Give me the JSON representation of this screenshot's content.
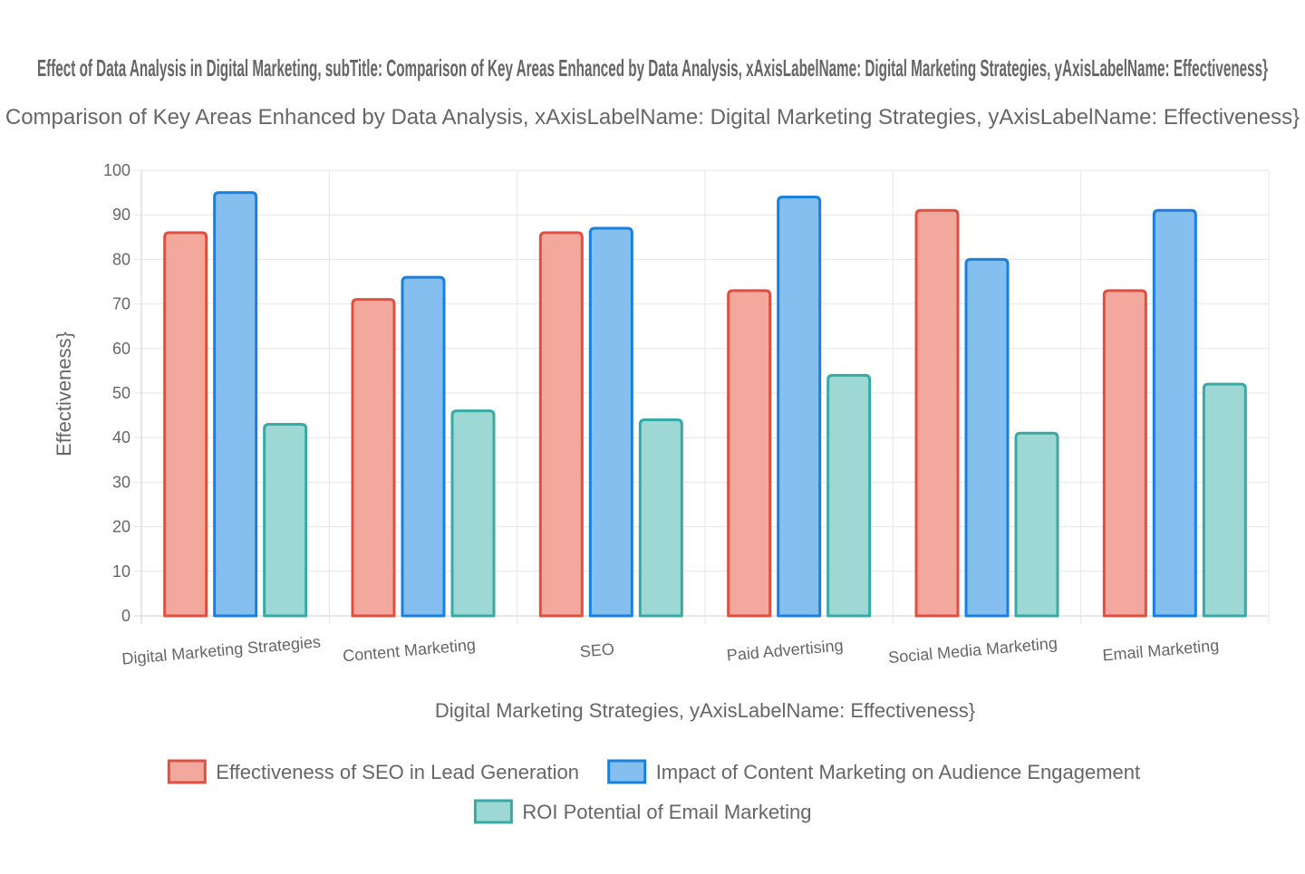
{
  "chart_data": {
    "type": "bar",
    "title": "Effect of Data Analysis in Digital Marketing, subTitle: Comparison of Key Areas Enhanced by Data Analysis, xAxisLabelName: Digital Marketing Strategies, yAxisLabelName: Effectiveness}",
    "subtitle": "Comparison of Key Areas Enhanced by Data Analysis, xAxisLabelName: Digital Marketing Strategies, yAxisLabelName: Effectiveness}",
    "xlabel": "Digital Marketing Strategies, yAxisLabelName: Effectiveness}",
    "ylabel": "Effectiveness}",
    "ylim": [
      0,
      100
    ],
    "yticks": [
      0,
      10,
      20,
      30,
      40,
      50,
      60,
      70,
      80,
      90,
      100
    ],
    "grid": true,
    "legend_position": "bottom",
    "categories": [
      "Digital Marketing Strategies",
      "Content Marketing",
      "SEO",
      "Paid Advertising",
      "Social Media Marketing",
      "Email Marketing"
    ],
    "series": [
      {
        "name": "Effectiveness of SEO in Lead Generation",
        "values": [
          86,
          71,
          86,
          73,
          91,
          73
        ],
        "fill": "#f2a89c",
        "stroke": "#e05040"
      },
      {
        "name": "Impact of Content Marketing on Audience Engagement",
        "values": [
          95,
          76,
          87,
          94,
          80,
          91
        ],
        "fill": "#85bff0",
        "stroke": "#1a80e0"
      },
      {
        "name": "ROI Potential of Email Marketing",
        "values": [
          43,
          46,
          44,
          54,
          41,
          52
        ],
        "fill": "#9dd8d4",
        "stroke": "#38aaa6"
      }
    ]
  }
}
